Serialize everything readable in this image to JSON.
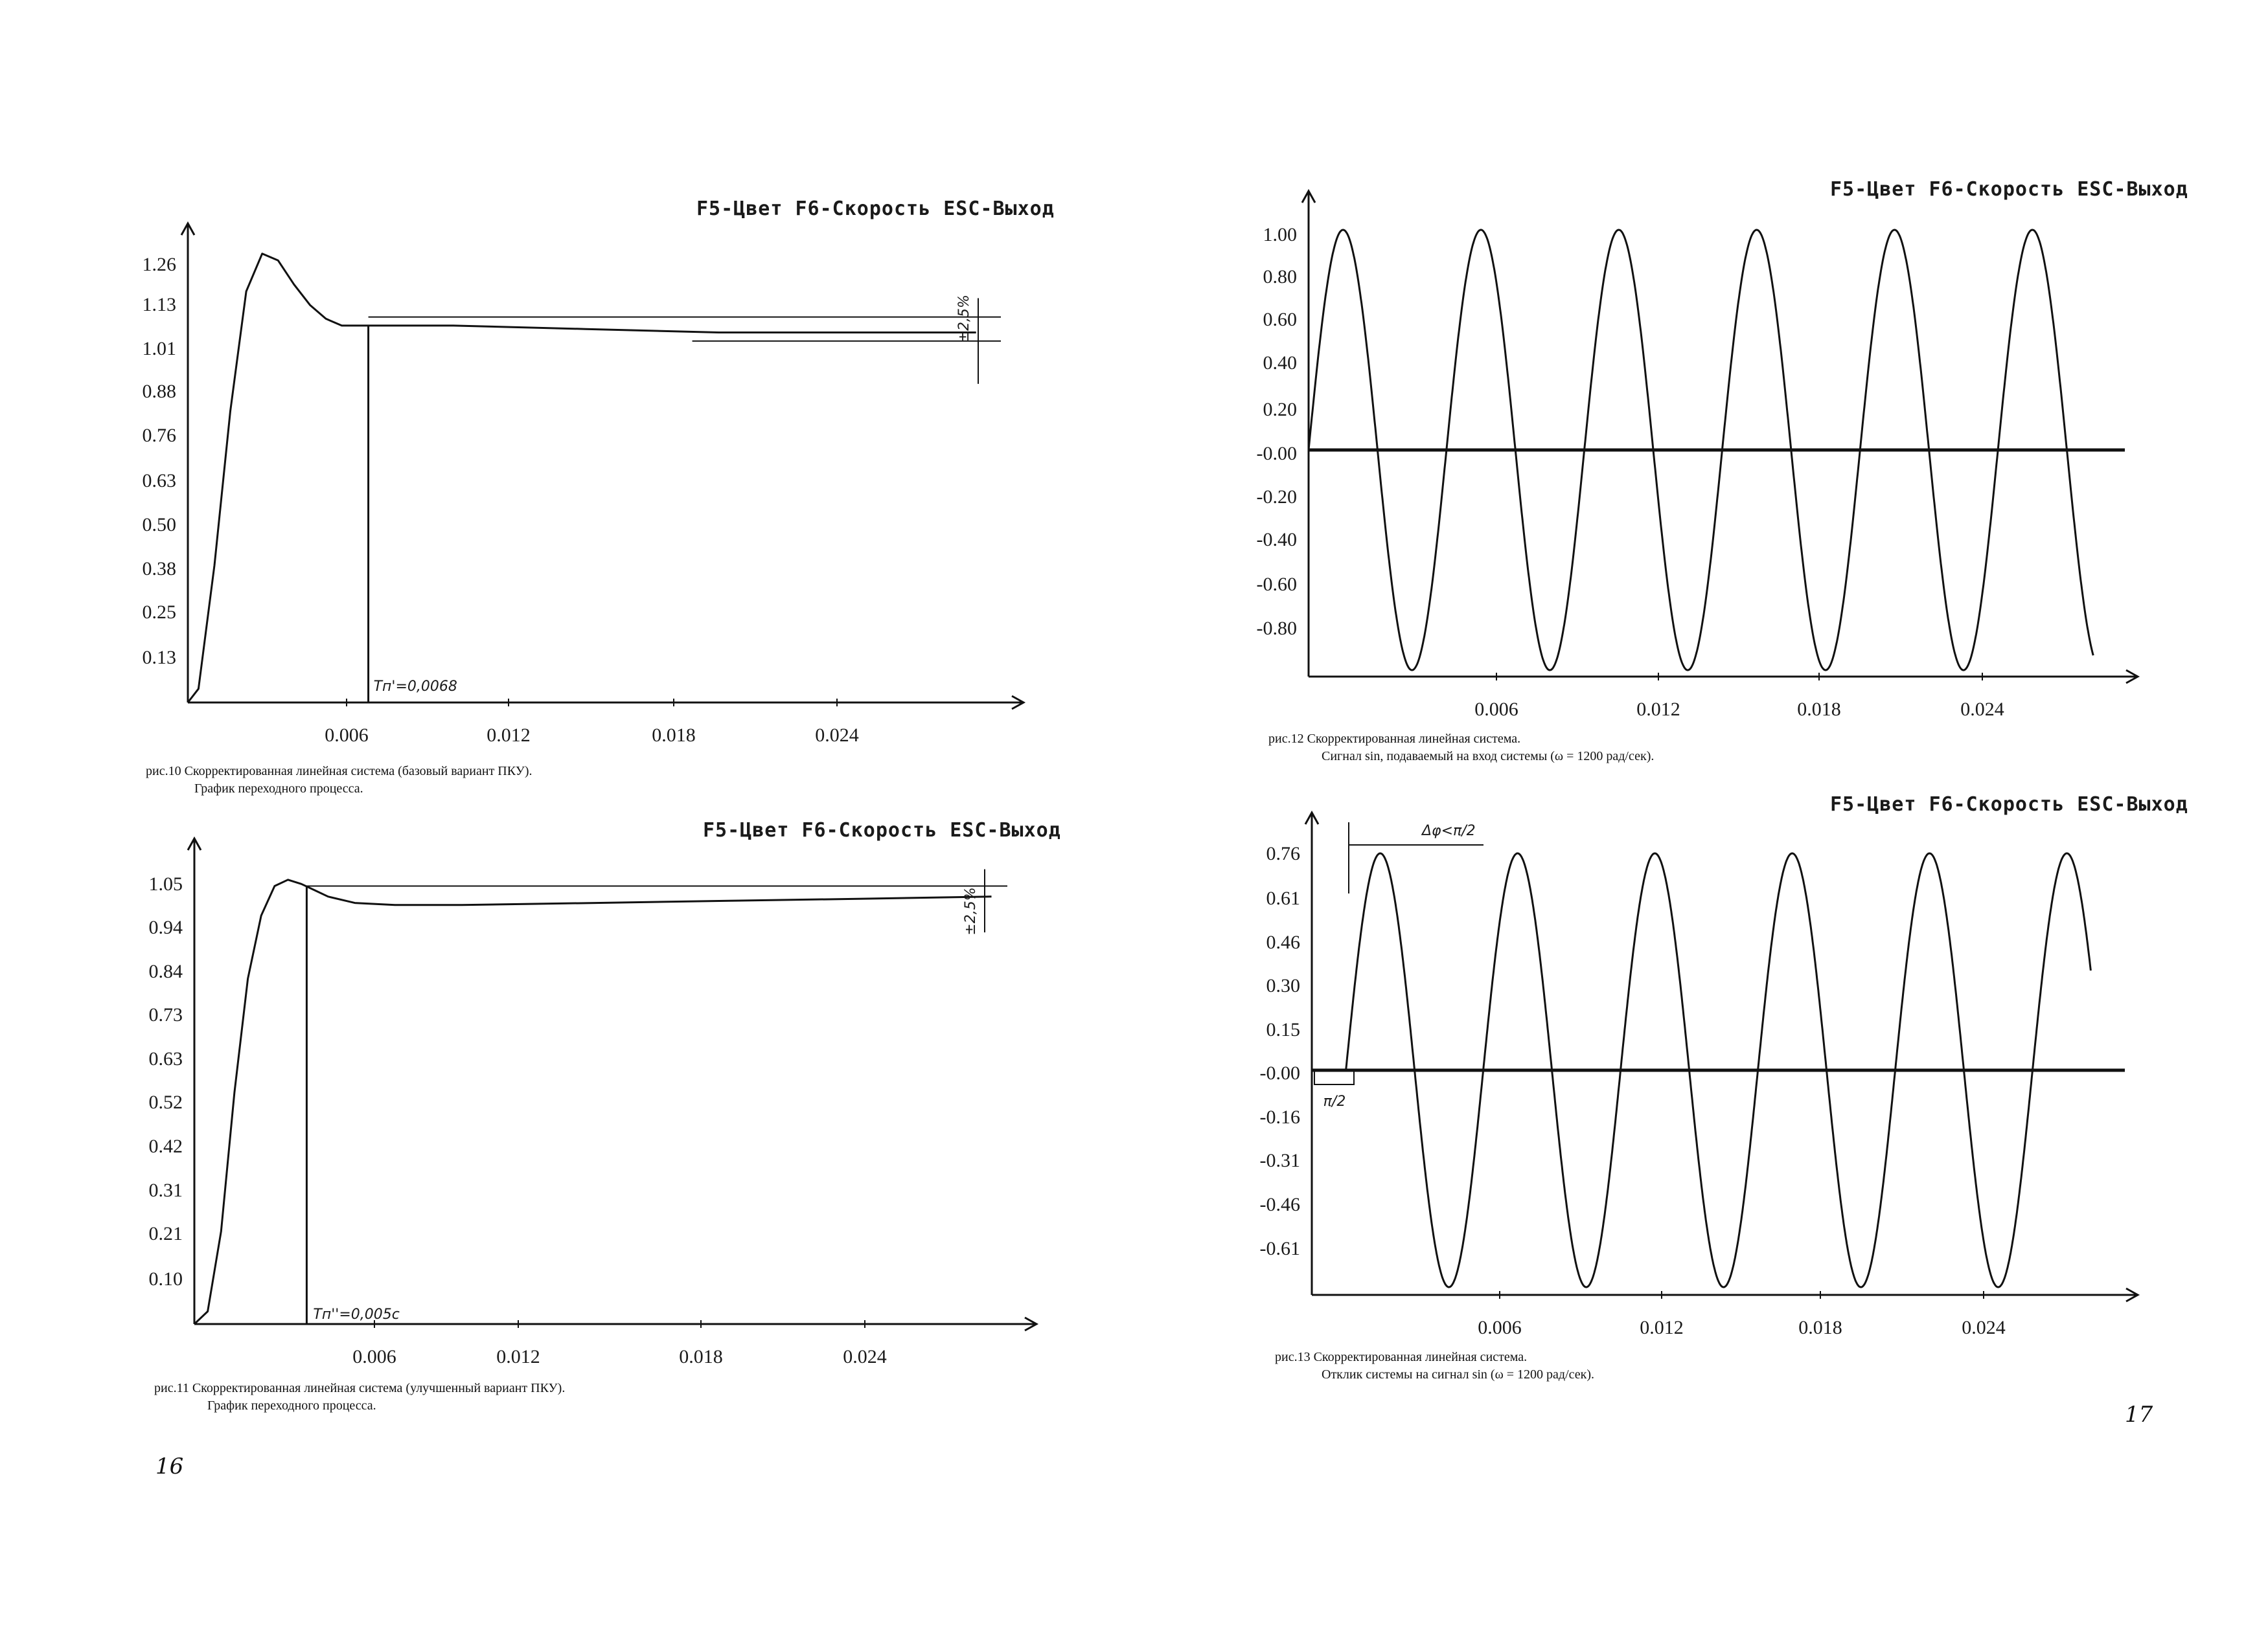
{
  "page": {
    "header": "F5-Цвет F6-Скорость ESC-Выход",
    "page_left": "16",
    "page_right": "17"
  },
  "chart_data": [
    {
      "id": "fig10",
      "type": "line",
      "header": "F5-Цвет F6-Скорость ESC-Выход",
      "caption": "рис.10 Скорректированная линейная система (базовый вариант ПКУ).",
      "caption2": "График переходного процесса.",
      "xticks": [
        "0.006",
        "0.012",
        "0.018",
        "0.024"
      ],
      "yticks": [
        "0.13",
        "0.25",
        "0.38",
        "0.50",
        "0.63",
        "0.76",
        "0.88",
        "1.01",
        "1.13",
        "1.26"
      ],
      "xlim": [
        0,
        0.031
      ],
      "ylim": [
        0,
        1.37
      ],
      "annotation_time": "Tп'=0,0068",
      "annotation_band": "±2,5%",
      "series": [
        {
          "x": [
            0,
            0.0004,
            0.001,
            0.0016,
            0.0022,
            0.0028,
            0.0034,
            0.004,
            0.0046,
            0.0052,
            0.0058,
            0.0064,
            0.0068,
            0.01,
            0.015,
            0.02,
            0.025,
            0.0297
          ],
          "y": [
            0,
            0.04,
            0.4,
            0.85,
            1.2,
            1.31,
            1.29,
            1.22,
            1.16,
            1.12,
            1.1,
            1.1,
            1.1,
            1.1,
            1.09,
            1.08,
            1.08,
            1.08
          ]
        }
      ]
    },
    {
      "id": "fig11",
      "type": "line",
      "header": "F5-Цвет F6-Скорость ESC-Выход",
      "caption": "рис.11 Скорректированная линейная система (улучшенный вариант ПКУ).",
      "caption2": "График переходного процесса.",
      "xticks": [
        "0.006",
        "0.012",
        "0.018",
        "0.024"
      ],
      "yticks": [
        "0.10",
        "0.21",
        "0.31",
        "0.42",
        "0.52",
        "0.63",
        "0.73",
        "0.84",
        "0.94",
        "1.05"
      ],
      "xlim": [
        0,
        0.031
      ],
      "ylim": [
        0,
        1.13
      ],
      "annotation_time": "Tп''=0,005с",
      "annotation_band": "±2,5%",
      "series": [
        {
          "x": [
            0,
            0.0005,
            0.001,
            0.0015,
            0.002,
            0.0025,
            0.003,
            0.0035,
            0.004,
            0.0045,
            0.005,
            0.006,
            0.0075,
            0.01,
            0.015,
            0.02,
            0.025,
            0.0298
          ],
          "y": [
            0,
            0.03,
            0.22,
            0.55,
            0.82,
            0.97,
            1.04,
            1.055,
            1.045,
            1.03,
            1.015,
            1.0,
            0.995,
            0.995,
            1.0,
            1.005,
            1.01,
            1.015
          ]
        }
      ]
    },
    {
      "id": "fig12",
      "type": "line",
      "header": "F5-Цвет F6-Скорость ESC-Выход",
      "caption": "рис.12 Скорректированная линейная система.",
      "caption2": "Сигнал sin, подаваемый на вход системы (ω = 1200 рад/сек).",
      "xticks": [
        "0.006",
        "0.012",
        "0.018",
        "0.024"
      ],
      "yticks": [
        "1.00",
        "0.80",
        "0.60",
        "0.40",
        "0.20",
        "-0.00",
        "-0.20",
        "-0.40",
        "-0.60",
        "-0.80"
      ],
      "xlim": [
        0,
        0.031
      ],
      "ylim": [
        -1.0,
        1.05
      ],
      "signal": {
        "amplitude": 1.0,
        "omega": 1200,
        "phase_deg": 0,
        "t_end": 0.0298
      }
    },
    {
      "id": "fig13",
      "type": "line",
      "header": "F5-Цвет F6-Скорость ESC-Выход",
      "caption": "рис.13 Скорректированная линейная система.",
      "caption2": "Отклик системы на сигнал sin (ω = 1200 рад/сек).",
      "xticks": [
        "0.006",
        "0.012",
        "0.018",
        "0.024"
      ],
      "yticks": [
        "0.76",
        "0.61",
        "0.46",
        "0.30",
        "0.15",
        "-0.00",
        "-0.16",
        "-0.31",
        "-0.46",
        "-0.61"
      ],
      "xlim": [
        0,
        0.031
      ],
      "ylim": [
        -0.78,
        0.82
      ],
      "annotation_phase": "Δφ<π/2",
      "annotation_small": "π/2",
      "signal": {
        "amplitude": 0.76,
        "omega": 1200,
        "t_start": 0.0013,
        "t_end": 0.0297
      }
    }
  ]
}
